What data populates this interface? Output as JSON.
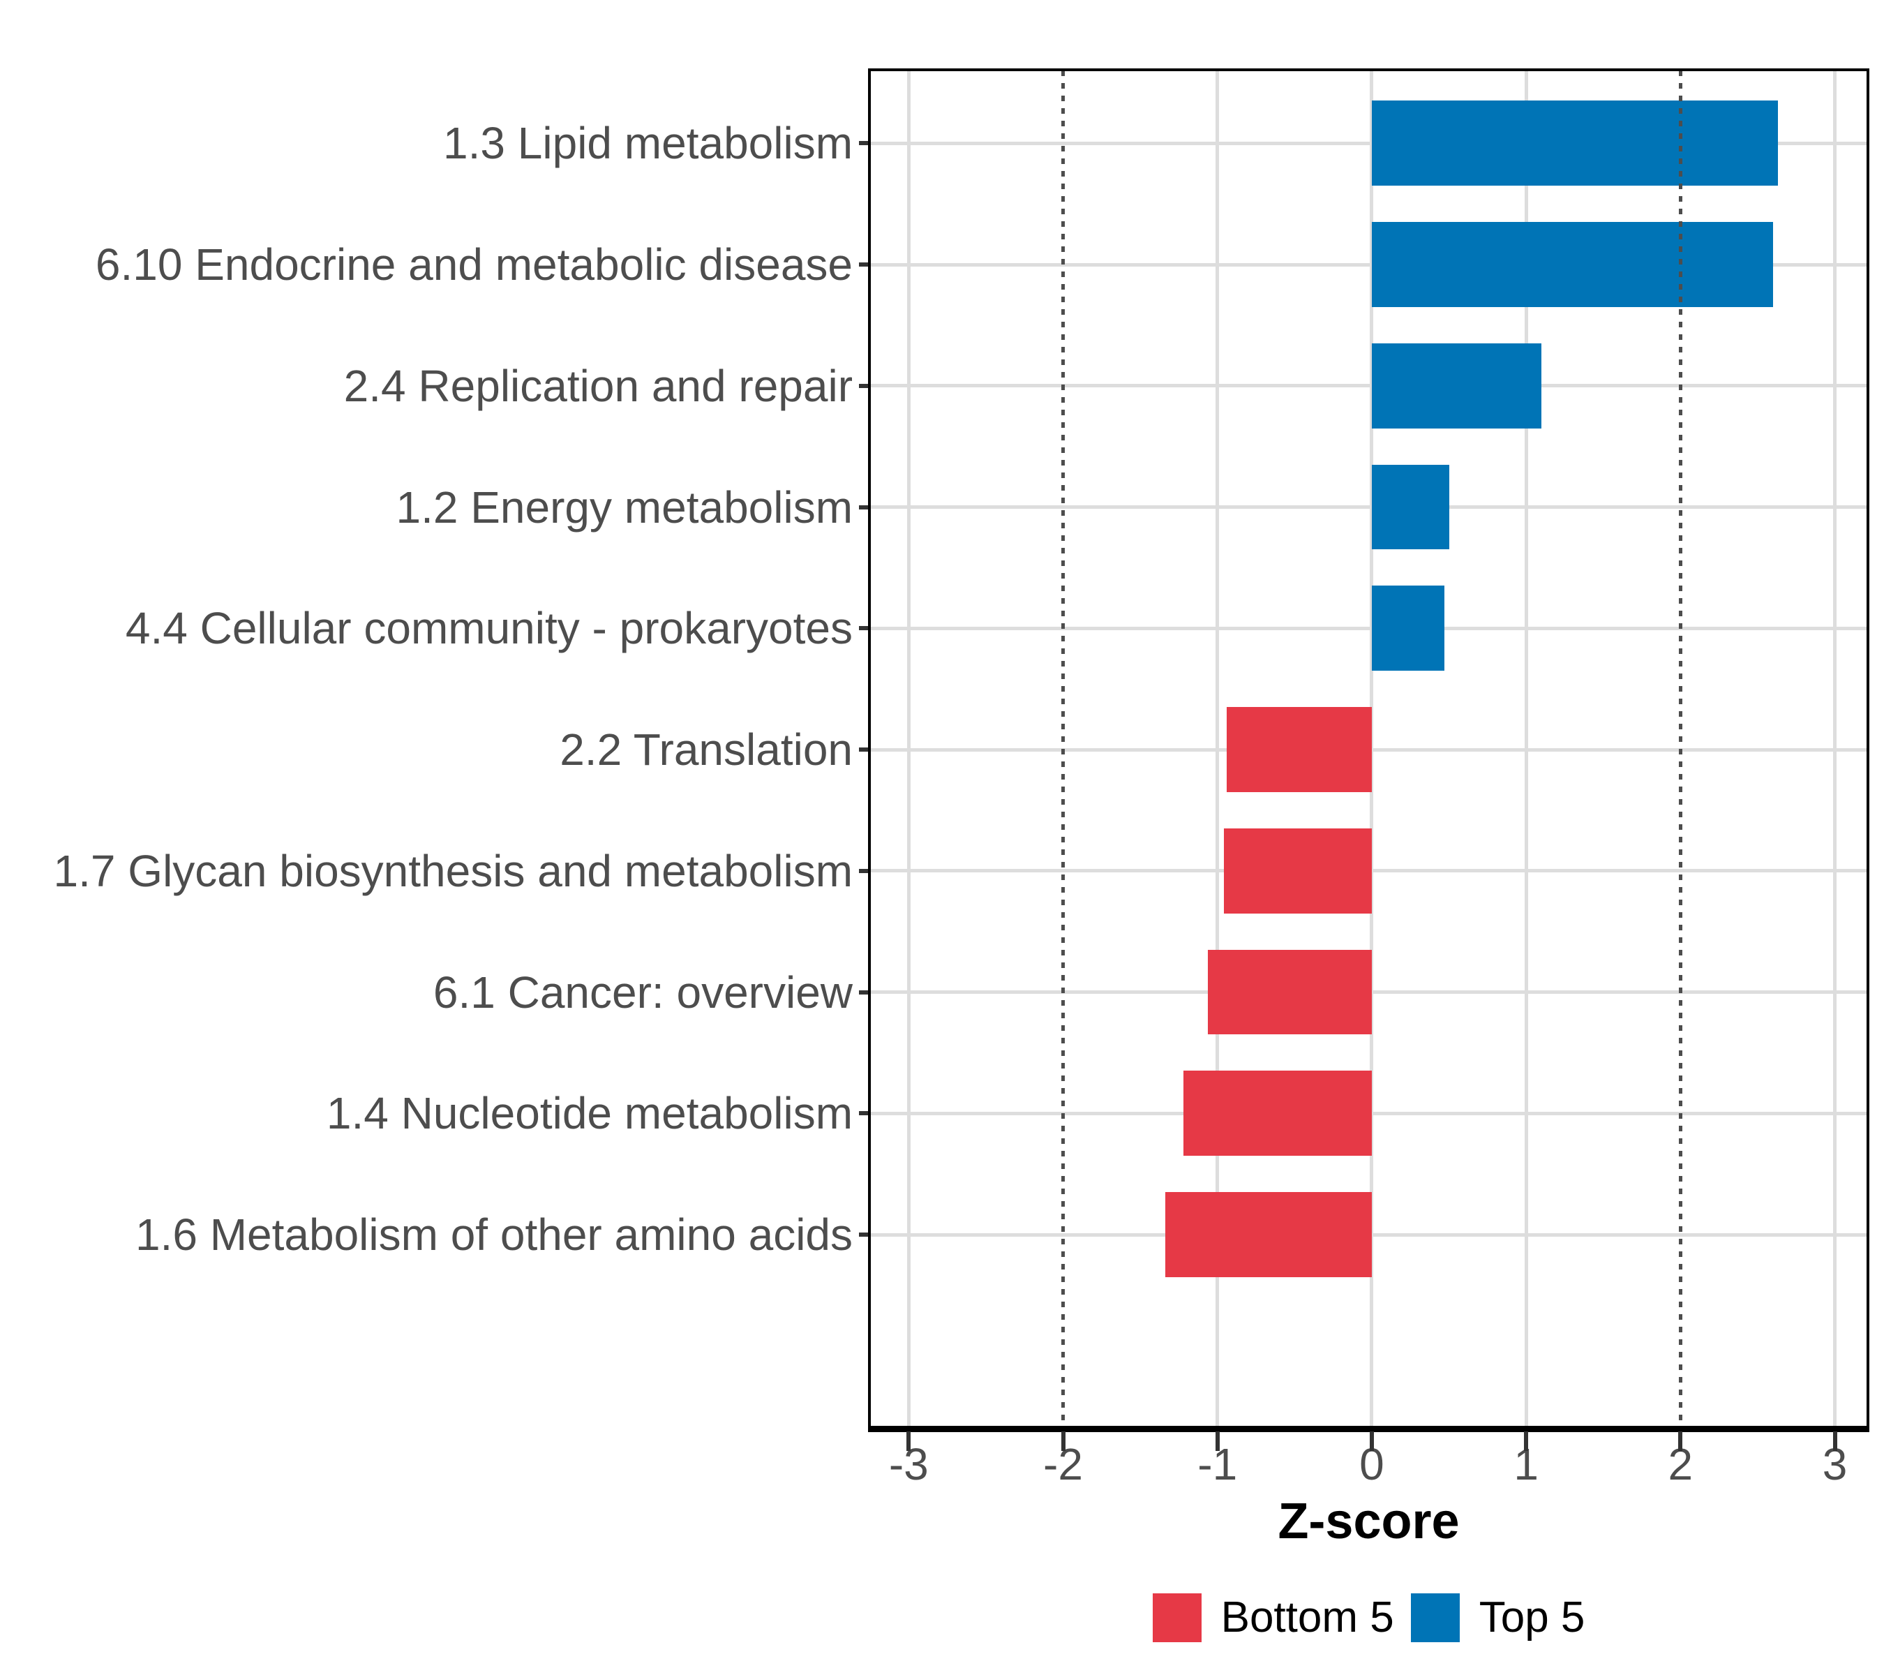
{
  "chart_data": {
    "type": "bar",
    "orientation": "horizontal",
    "title": "",
    "xlabel": "Z-score",
    "ylabel": "",
    "categories": [
      "1.3 Lipid metabolism",
      "6.10 Endocrine and metabolic disease",
      "2.4 Replication and repair",
      "1.2 Energy metabolism",
      "4.4 Cellular community - prokaryotes",
      "2.2 Translation",
      "1.7 Glycan biosynthesis and metabolism",
      "6.1 Cancer: overview",
      "1.4 Nucleotide metabolism",
      "1.6 Metabolism of other amino acids"
    ],
    "values": [
      2.63,
      2.6,
      1.1,
      0.5,
      0.47,
      -0.94,
      -0.96,
      -1.06,
      -1.22,
      -1.34
    ],
    "groups": [
      "Top 5",
      "Top 5",
      "Top 5",
      "Top 5",
      "Top 5",
      "Bottom 5",
      "Bottom 5",
      "Bottom 5",
      "Bottom 5",
      "Bottom 5"
    ],
    "x_ticks": [
      -3,
      -2,
      -1,
      0,
      1,
      2,
      3
    ],
    "xlim": [
      -3.25,
      3.21
    ],
    "reference_lines": [
      -2,
      2
    ],
    "grid": true,
    "legend_position": "bottom",
    "legend": [
      {
        "label": "Bottom 5",
        "color": "#E63946"
      },
      {
        "label": "Top 5",
        "color": "#0074B6"
      }
    ],
    "style": {
      "gridline_color": "#DDDDDD",
      "reference_line_color": "#4D4D4D",
      "axis_text_color": "#4D4D4D",
      "axis_line_color": "#000000",
      "panel_background": "#FFFFFF"
    }
  }
}
